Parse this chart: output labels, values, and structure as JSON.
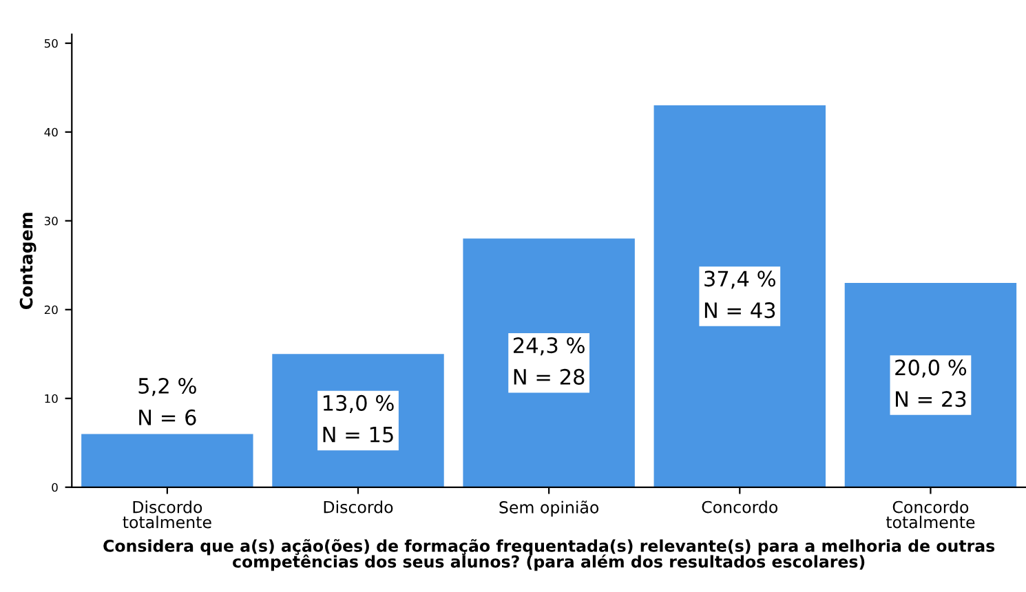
{
  "chart_data": {
    "type": "bar",
    "categories": [
      "Discordo\ntotalmente",
      "Discordo",
      "Sem opinião",
      "Concordo",
      "Concordo\ntotalmente"
    ],
    "values": [
      6,
      15,
      28,
      43,
      23
    ],
    "value_labels": [
      "5,2 %\nN = 6",
      "13,0 %\nN = 15",
      "24,3 %\nN = 28",
      "37,4 %\nN = 43",
      "20,0 %\nN = 23"
    ],
    "color": "#4a96e4",
    "ylabel": "Contagem",
    "xlabel": "Considera que a(s) ação(ões) de formação frequentada(s) relevante(s) para a melhoria de outras\ncompetências dos seus alunos? (para além dos resultados escolares)",
    "ylim": [
      0,
      51
    ],
    "yticks": [
      0,
      10,
      20,
      30,
      40,
      50
    ],
    "grid": false,
    "legend": false
  }
}
